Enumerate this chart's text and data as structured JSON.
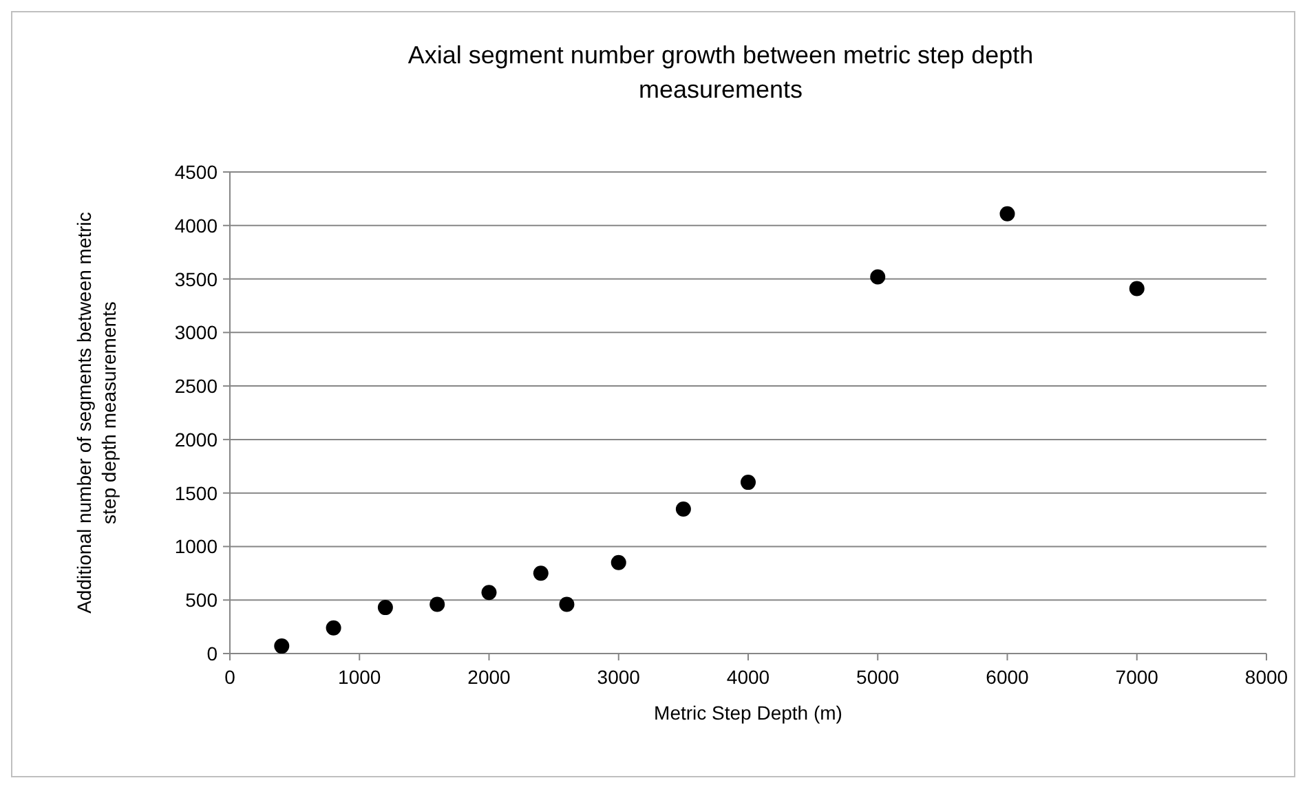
{
  "chart_data": {
    "type": "scatter",
    "title": "Axial segment number growth between metric step depth measurements",
    "xlabel": "Metric Step Depth (m)",
    "ylabel": "Additional number of segments between metric step depth measurements",
    "x": [
      400,
      800,
      1200,
      1600,
      2000,
      2400,
      2600,
      3000,
      3500,
      4000,
      5000,
      6000,
      7000
    ],
    "series": [
      {
        "color": "#000000",
        "values": [
          70,
          240,
          430,
          460,
          570,
          750,
          460,
          850,
          1350,
          1600,
          3520,
          4110,
          3410
        ]
      }
    ],
    "xlim": [
      0,
      8000
    ],
    "xticks": [
      0,
      1000,
      2000,
      3000,
      4000,
      5000,
      6000,
      7000,
      8000
    ],
    "ylim": [
      0,
      4500
    ],
    "yticks": [
      0,
      500,
      1000,
      1500,
      2000,
      2500,
      3000,
      3500,
      4000,
      4500
    ],
    "grid": "y",
    "marker": "circle"
  }
}
